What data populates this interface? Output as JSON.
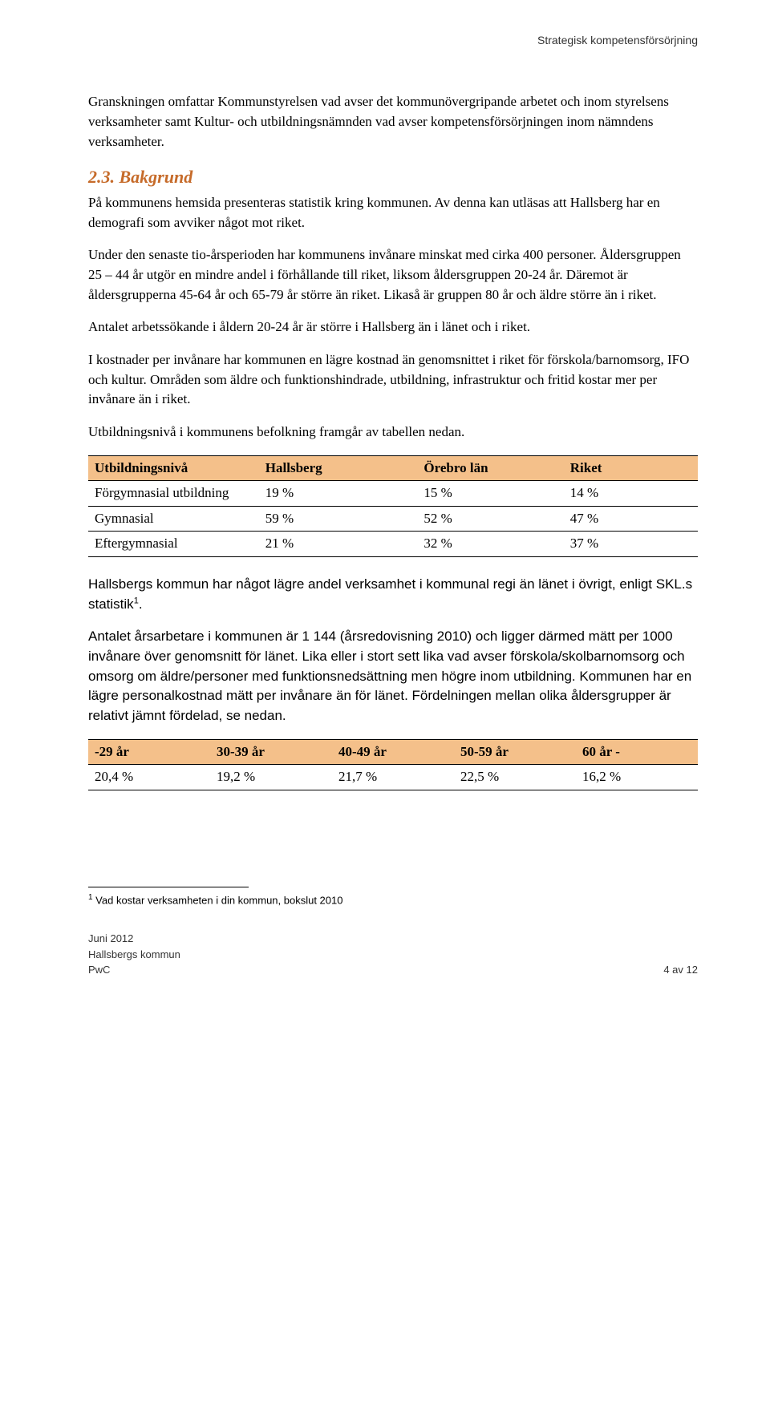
{
  "header_right": "Strategisk kompetensförsörjning",
  "para1": "Granskningen omfattar Kommunstyrelsen vad avser det kommunövergripande arbetet och inom styrelsens verksamheter samt Kultur- och utbildningsnämnden vad avser kompetensförsörjningen inom nämndens verksamheter.",
  "section_heading": "2.3. Bakgrund",
  "para2": "På kommunens hemsida presenteras statistik kring kommunen. Av denna kan utläsas att Hallsberg har en demografi som avviker något mot riket.",
  "para3": "Under den senaste tio-årsperioden har kommunens invånare minskat med cirka 400 personer. Åldersgruppen 25 – 44 år utgör en mindre andel i förhållande till riket, liksom åldersgruppen 20-24 år. Däremot är åldersgrupperna 45-64 år och 65-79 år större än riket. Likaså är gruppen 80 år och äldre större än i riket.",
  "para4": "Antalet arbetssökande i åldern 20-24 år är större i Hallsberg än i länet och i riket.",
  "para5": "I kostnader per invånare har kommunen en lägre kostnad än genomsnittet i riket för förskola/barnomsorg, IFO och kultur. Områden som äldre och funktionshindrade, utbildning, infrastruktur och fritid kostar mer per invånare än i riket.",
  "para6": "Utbildningsnivå i kommunens befolkning framgår av tabellen nedan.",
  "table1": {
    "background_color": "#f4c08a",
    "columns": [
      "Utbildningsnivå",
      "Hallsberg",
      "Örebro län",
      "Riket"
    ],
    "rows": [
      [
        "Förgymnasial utbildning",
        "19 %",
        "15 %",
        "14 %"
      ],
      [
        "Gymnasial",
        "59 %",
        "52 %",
        "47 %"
      ],
      [
        "Eftergymnasial",
        "21 %",
        "32 %",
        "37 %"
      ]
    ],
    "col_widths": [
      "28%",
      "26%",
      "24%",
      "22%"
    ]
  },
  "para7_pre": "Hallsbergs kommun har något lägre andel verksamhet i kommunal regi än länet i övrigt, enligt SKL.s statistik",
  "para7_post": ".",
  "para8": "Antalet årsarbetare i kommunen är 1 144 (årsredovisning 2010) och ligger därmed mätt per 1000 invånare över genomsnitt för länet. Lika eller i stort sett lika vad avser förskola/skolbarnomsorg och omsorg om äldre/personer med funktionsnedsättning men högre inom utbildning. Kommunen har en lägre personalkostnad mätt per invånare än för länet. Fördelningen mellan olika åldersgrupper är relativt jämnt fördelad, se nedan.",
  "table2": {
    "background_color": "#f4c08a",
    "columns": [
      "-29 år",
      "30-39 år",
      "40-49 år",
      "50-59 år",
      "60 år -"
    ],
    "rows": [
      [
        "20,4 %",
        "19,2 %",
        "21,7 %",
        "22,5 %",
        "16,2 %"
      ]
    ],
    "col_widths": [
      "20%",
      "20%",
      "20%",
      "20%",
      "20%"
    ]
  },
  "footnote_marker": "1",
  "footnote_text": " Vad kostar verksamheten i din kommun, bokslut 2010",
  "footer": {
    "left_line1": "Juni 2012",
    "left_line2": "Hallsbergs kommun",
    "left_line3": "PwC",
    "right": "4 av 12"
  },
  "colors": {
    "heading": "#c66b2a",
    "table_header_bg": "#f4c08a",
    "text": "#000000",
    "background": "#ffffff"
  },
  "typography": {
    "body_font": "Georgia",
    "body_size_pt": 12,
    "heading_size_pt": 16,
    "header_footer_font": "Arial",
    "header_footer_size_pt": 10
  }
}
